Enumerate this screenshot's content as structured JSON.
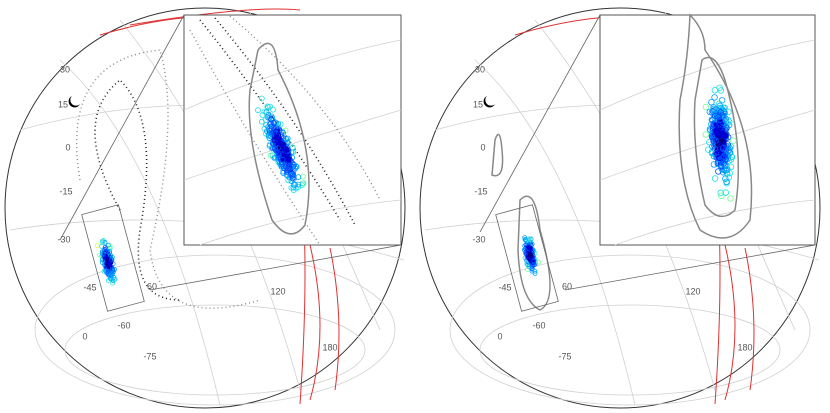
{
  "panels": [
    {
      "labels": [
        "30",
        "15",
        "0",
        "-15",
        "-30",
        "-45",
        "60",
        "120",
        "-60",
        "0",
        "-75",
        "180"
      ]
    },
    {
      "labels": [
        "30",
        "15",
        "0",
        "-15",
        "-30",
        "-45",
        "60",
        "120",
        "-60",
        "0",
        "-75",
        "180"
      ]
    }
  ]
}
